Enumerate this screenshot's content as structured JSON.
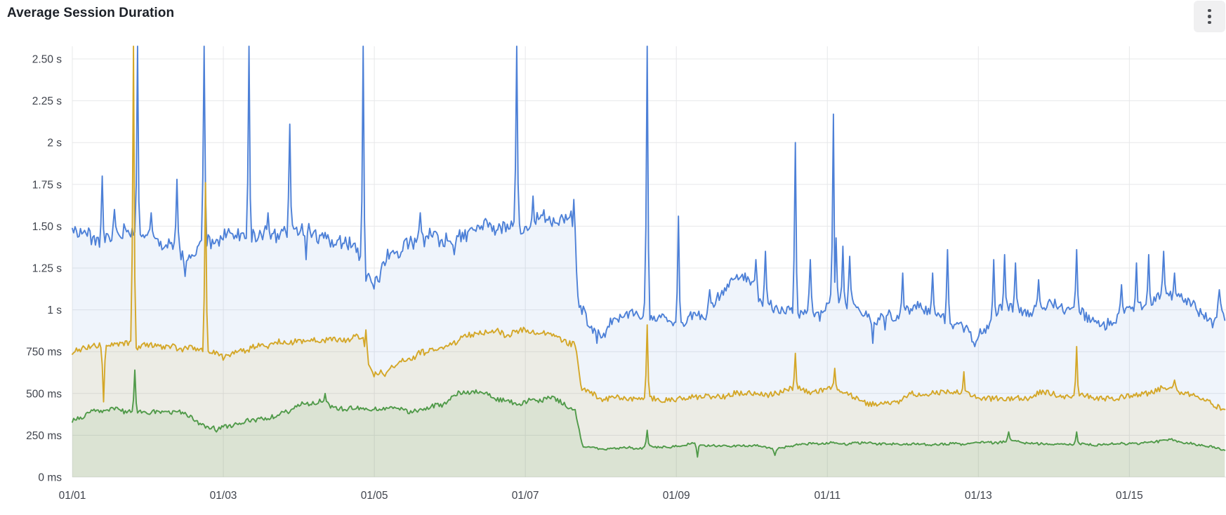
{
  "panel": {
    "title": "Average Session Duration"
  },
  "menu": {
    "icon": "kebab-vertical"
  },
  "colors": {
    "background": "#ffffff",
    "title_text": "#1c2128",
    "axis_text": "#3f434c",
    "gridline": "#e7e8ea",
    "kebab_bg": "#f0f0f1",
    "kebab_dot": "#4b4d52"
  },
  "chart_data": {
    "type": "area",
    "title": "Average Session Duration",
    "legend": "none",
    "grid": true,
    "unit": "seconds",
    "sample_step_days": 0.018,
    "x_axis": {
      "domain_days": [
        0,
        15.28
      ],
      "start_label": "01/01",
      "ticks": [
        {
          "label": "01/01",
          "day": 0
        },
        {
          "label": "01/03",
          "day": 2
        },
        {
          "label": "01/05",
          "day": 4
        },
        {
          "label": "01/07",
          "day": 6
        },
        {
          "label": "01/09",
          "day": 8
        },
        {
          "label": "01/11",
          "day": 10
        },
        {
          "label": "01/13",
          "day": 12
        },
        {
          "label": "01/15",
          "day": 14
        }
      ]
    },
    "y_axis": {
      "min": 0,
      "max_visible": 2.575,
      "ticks": [
        {
          "label": "0 ms",
          "value": 0
        },
        {
          "label": "250 ms",
          "value": 0.25
        },
        {
          "label": "500 ms",
          "value": 0.5
        },
        {
          "label": "750 ms",
          "value": 0.75
        },
        {
          "label": "1 s",
          "value": 1
        },
        {
          "label": "1.25 s",
          "value": 1.25
        },
        {
          "label": "1.50 s",
          "value": 1.5
        },
        {
          "label": "1.75 s",
          "value": 1.75
        },
        {
          "label": "2 s",
          "value": 2
        },
        {
          "label": "2.25 s",
          "value": 2.25
        },
        {
          "label": "2.50 s",
          "value": 2.5
        }
      ]
    },
    "series": [
      {
        "id": "blue",
        "color": "#4d80d7",
        "fill_opacity": 0.09,
        "seed": 3,
        "anchors": [
          [
            0,
            1.47
          ],
          [
            0.3,
            1.43
          ],
          [
            0.8,
            1.45
          ],
          [
            1.0,
            1.44
          ],
          [
            1.45,
            1.37
          ],
          [
            1.6,
            1.34
          ],
          [
            1.8,
            1.42
          ],
          [
            2.1,
            1.41
          ],
          [
            2.5,
            1.44
          ],
          [
            2.9,
            1.45
          ],
          [
            3.3,
            1.44
          ],
          [
            3.75,
            1.43
          ],
          [
            3.88,
            1.2
          ],
          [
            4.0,
            1.17
          ],
          [
            4.15,
            1.3
          ],
          [
            4.4,
            1.42
          ],
          [
            5.0,
            1.45
          ],
          [
            5.5,
            1.5
          ],
          [
            6.0,
            1.52
          ],
          [
            6.3,
            1.54
          ],
          [
            6.62,
            1.55
          ],
          [
            6.7,
            1.02
          ],
          [
            6.85,
            0.9
          ],
          [
            7.0,
            0.87
          ],
          [
            7.15,
            0.95
          ],
          [
            7.45,
            0.97
          ],
          [
            7.7,
            0.94
          ],
          [
            8.1,
            0.93
          ],
          [
            8.4,
            0.96
          ],
          [
            8.65,
            1.1
          ],
          [
            8.85,
            1.2
          ],
          [
            9.0,
            1.17
          ],
          [
            9.15,
            1.02
          ],
          [
            9.5,
            0.98
          ],
          [
            9.9,
            0.96
          ],
          [
            10.05,
            1.08
          ],
          [
            10.25,
            1.06
          ],
          [
            10.45,
            0.97
          ],
          [
            10.65,
            0.92
          ],
          [
            10.9,
            0.95
          ],
          [
            11.2,
            1.0
          ],
          [
            11.5,
            0.97
          ],
          [
            11.9,
            0.86
          ],
          [
            12.1,
            0.89
          ],
          [
            12.3,
            1.0
          ],
          [
            12.6,
            1.0
          ],
          [
            13.0,
            1.03
          ],
          [
            13.3,
            1.0
          ],
          [
            13.55,
            0.9
          ],
          [
            13.8,
            0.93
          ],
          [
            14.1,
            1.02
          ],
          [
            14.4,
            1.06
          ],
          [
            14.75,
            1.05
          ],
          [
            15.0,
            0.98
          ],
          [
            15.1,
            0.93
          ],
          [
            15.2,
            1.0
          ],
          [
            15.28,
            0.95
          ]
        ],
        "noise_amp": [
          [
            0,
            0.07
          ],
          [
            6.6,
            0.07
          ],
          [
            6.75,
            0.055
          ],
          [
            15.28,
            0.055
          ]
        ],
        "spikes": [
          [
            0.37,
            1.22
          ],
          [
            0.4,
            1.8
          ],
          [
            0.55,
            1.6
          ],
          [
            0.86,
            2.6
          ],
          [
            1.05,
            1.58
          ],
          [
            1.38,
            1.78
          ],
          [
            1.5,
            1.2
          ],
          [
            1.74,
            2.6
          ],
          [
            2.34,
            2.6
          ],
          [
            2.6,
            1.58
          ],
          [
            2.88,
            2.11
          ],
          [
            3.1,
            1.3
          ],
          [
            3.85,
            2.6
          ],
          [
            4.6,
            1.58
          ],
          [
            5.05,
            1.33
          ],
          [
            5.88,
            2.6
          ],
          [
            6.1,
            1.68
          ],
          [
            6.64,
            1.66
          ],
          [
            6.95,
            0.8
          ],
          [
            7.59,
            1.28
          ],
          [
            7.62,
            2.6
          ],
          [
            8.02,
            1.56
          ],
          [
            8.45,
            1.12
          ],
          [
            9.05,
            1.3
          ],
          [
            9.18,
            1.35
          ],
          [
            9.58,
            2.0
          ],
          [
            9.78,
            1.3
          ],
          [
            10.08,
            2.17
          ],
          [
            10.12,
            1.43
          ],
          [
            10.2,
            1.38
          ],
          [
            10.3,
            1.32
          ],
          [
            10.6,
            0.8
          ],
          [
            10.77,
            0.88
          ],
          [
            11.0,
            1.22
          ],
          [
            11.39,
            1.22
          ],
          [
            11.6,
            1.36
          ],
          [
            11.95,
            0.78
          ],
          [
            12.2,
            1.3
          ],
          [
            12.35,
            1.33
          ],
          [
            12.5,
            1.28
          ],
          [
            12.8,
            1.18
          ],
          [
            13.3,
            1.36
          ],
          [
            13.9,
            1.15
          ],
          [
            14.1,
            1.28
          ],
          [
            14.25,
            1.33
          ],
          [
            14.45,
            1.35
          ],
          [
            14.6,
            1.22
          ],
          [
            15.2,
            1.12
          ]
        ]
      },
      {
        "id": "yellow",
        "color": "#d4a728",
        "fill_opacity": 0.1,
        "seed": 11,
        "anchors": [
          [
            0,
            0.74
          ],
          [
            0.35,
            0.78
          ],
          [
            0.8,
            0.79
          ],
          [
            1.2,
            0.78
          ],
          [
            1.7,
            0.76
          ],
          [
            2.0,
            0.72
          ],
          [
            2.4,
            0.78
          ],
          [
            3.0,
            0.82
          ],
          [
            3.5,
            0.83
          ],
          [
            3.85,
            0.82
          ],
          [
            3.95,
            0.64
          ],
          [
            4.15,
            0.63
          ],
          [
            4.35,
            0.7
          ],
          [
            4.7,
            0.75
          ],
          [
            5.0,
            0.8
          ],
          [
            5.4,
            0.86
          ],
          [
            5.8,
            0.86
          ],
          [
            6.2,
            0.87
          ],
          [
            6.5,
            0.82
          ],
          [
            6.66,
            0.8
          ],
          [
            6.74,
            0.55
          ],
          [
            7.0,
            0.46
          ],
          [
            7.3,
            0.47
          ],
          [
            7.6,
            0.48
          ],
          [
            7.8,
            0.45
          ],
          [
            8.1,
            0.46
          ],
          [
            8.4,
            0.48
          ],
          [
            8.8,
            0.5
          ],
          [
            9.2,
            0.5
          ],
          [
            9.6,
            0.52
          ],
          [
            9.9,
            0.52
          ],
          [
            10.15,
            0.53
          ],
          [
            10.4,
            0.46
          ],
          [
            10.7,
            0.43
          ],
          [
            10.9,
            0.45
          ],
          [
            11.2,
            0.5
          ],
          [
            11.5,
            0.52
          ],
          [
            11.8,
            0.5
          ],
          [
            12.1,
            0.47
          ],
          [
            12.5,
            0.47
          ],
          [
            12.9,
            0.5
          ],
          [
            13.2,
            0.49
          ],
          [
            13.5,
            0.48
          ],
          [
            13.8,
            0.47
          ],
          [
            14.1,
            0.5
          ],
          [
            14.45,
            0.53
          ],
          [
            14.65,
            0.52
          ],
          [
            14.9,
            0.47
          ],
          [
            15.1,
            0.45
          ],
          [
            15.28,
            0.4
          ]
        ],
        "noise_amp": [
          [
            0,
            0.03
          ],
          [
            6.6,
            0.03
          ],
          [
            6.75,
            0.027
          ],
          [
            15.28,
            0.027
          ]
        ],
        "spikes": [
          [
            0.42,
            0.45
          ],
          [
            0.81,
            2.6
          ],
          [
            1.77,
            1.76
          ],
          [
            3.88,
            0.88
          ],
          [
            4.0,
            0.6
          ],
          [
            7.62,
            0.91
          ],
          [
            9.58,
            0.74
          ],
          [
            10.1,
            0.65
          ],
          [
            11.8,
            0.63
          ],
          [
            13.3,
            0.78
          ],
          [
            14.59,
            0.58
          ]
        ]
      },
      {
        "id": "green",
        "color": "#509a49",
        "fill_opacity": 0.11,
        "seed": 27,
        "anchors": [
          [
            0,
            0.34
          ],
          [
            0.2,
            0.38
          ],
          [
            0.5,
            0.4
          ],
          [
            0.8,
            0.4
          ],
          [
            1.1,
            0.39
          ],
          [
            1.5,
            0.38
          ],
          [
            1.75,
            0.31
          ],
          [
            2.0,
            0.3
          ],
          [
            2.3,
            0.34
          ],
          [
            2.7,
            0.37
          ],
          [
            3.0,
            0.43
          ],
          [
            3.3,
            0.46
          ],
          [
            3.6,
            0.4
          ],
          [
            4.0,
            0.41
          ],
          [
            4.3,
            0.4
          ],
          [
            4.6,
            0.4
          ],
          [
            4.9,
            0.43
          ],
          [
            5.1,
            0.5
          ],
          [
            5.35,
            0.52
          ],
          [
            5.6,
            0.46
          ],
          [
            5.9,
            0.44
          ],
          [
            6.1,
            0.46
          ],
          [
            6.35,
            0.48
          ],
          [
            6.55,
            0.42
          ],
          [
            6.66,
            0.4
          ],
          [
            6.76,
            0.18
          ],
          [
            7.0,
            0.17
          ],
          [
            7.4,
            0.175
          ],
          [
            7.8,
            0.18
          ],
          [
            8.2,
            0.2
          ],
          [
            8.6,
            0.19
          ],
          [
            9.0,
            0.19
          ],
          [
            9.3,
            0.17
          ],
          [
            9.6,
            0.19
          ],
          [
            10.0,
            0.2
          ],
          [
            10.5,
            0.2
          ],
          [
            11.0,
            0.2
          ],
          [
            11.5,
            0.195
          ],
          [
            12.0,
            0.2
          ],
          [
            12.4,
            0.215
          ],
          [
            12.8,
            0.2
          ],
          [
            13.2,
            0.2
          ],
          [
            13.6,
            0.195
          ],
          [
            14.0,
            0.2
          ],
          [
            14.3,
            0.21
          ],
          [
            14.55,
            0.22
          ],
          [
            14.9,
            0.19
          ],
          [
            15.1,
            0.18
          ],
          [
            15.28,
            0.155
          ]
        ],
        "noise_amp": [
          [
            0,
            0.022
          ],
          [
            6.6,
            0.022
          ],
          [
            6.76,
            0.011
          ],
          [
            15.28,
            0.011
          ]
        ],
        "spikes": [
          [
            0.82,
            0.64
          ],
          [
            1.9,
            0.27
          ],
          [
            3.35,
            0.5
          ],
          [
            7.62,
            0.28
          ],
          [
            8.28,
            0.12
          ],
          [
            9.3,
            0.13
          ],
          [
            12.4,
            0.27
          ],
          [
            13.3,
            0.27
          ]
        ]
      }
    ]
  }
}
